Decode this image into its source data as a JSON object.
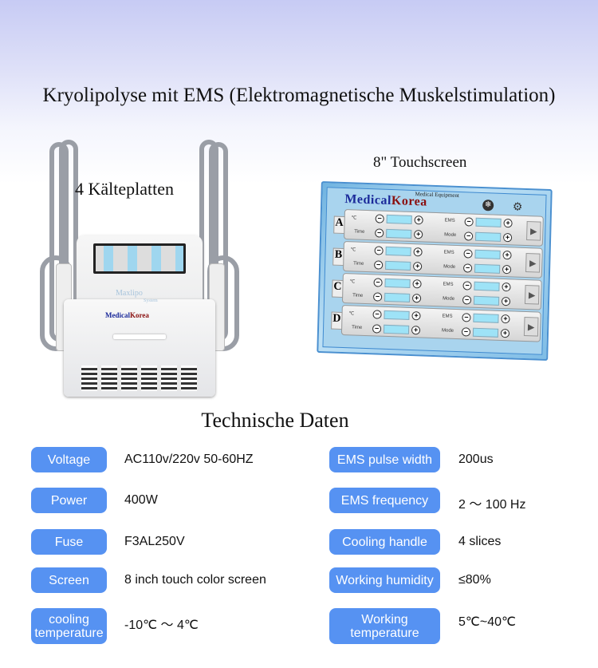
{
  "title": "Kryolipolyse mit EMS (Elektromagnetische Muskelstimulation)",
  "left_caption": "4 Kälteplatten",
  "right_caption": "8\" Touchscreen",
  "device": {
    "model": "Maxlipo",
    "model_sub": "System",
    "brand_blue": "Medical",
    "brand_red": "Korea",
    "brand_sub": "Medical Equipment"
  },
  "touchscreen": {
    "brand_blue": "Medical",
    "brand_red": "Korea",
    "brand_sub": "Medical Equipment",
    "icons": [
      "snowflake-icon",
      "gear-icon"
    ],
    "channels": [
      {
        "letter": "A"
      },
      {
        "letter": "B"
      },
      {
        "letter": "C"
      },
      {
        "letter": "D"
      }
    ],
    "labels": {
      "temp": "℃",
      "time": "Time",
      "ems": "EMS",
      "mode": "Mode",
      "minus": "−",
      "plus": "+",
      "play": "▶"
    }
  },
  "section_title": "Technische Daten",
  "colors": {
    "pill": "#5692f2",
    "brand_blue": "#1b2a9a",
    "brand_red": "#8a1010"
  },
  "specs_left": [
    {
      "label": "Voltage",
      "value": "AC110v/220v  50-60HZ"
    },
    {
      "label": "Power",
      "value": "400W"
    },
    {
      "label": "Fuse",
      "value": "F3AL250V"
    },
    {
      "label": "Screen",
      "value": "8 inch touch color screen"
    },
    {
      "label": "cooling temperature",
      "value": "-10℃ ～ 4℃"
    }
  ],
  "specs_right": [
    {
      "label": "EMS pulse width",
      "value": "200us"
    },
    {
      "label": "EMS frequency",
      "value": "2 ～ 100 Hz"
    },
    {
      "label": "Cooling handle",
      "value": "4 slices"
    },
    {
      "label": "Working humidity",
      "value": "≤80%"
    },
    {
      "label": "Working temperature",
      "value": "5℃~40℃"
    }
  ]
}
